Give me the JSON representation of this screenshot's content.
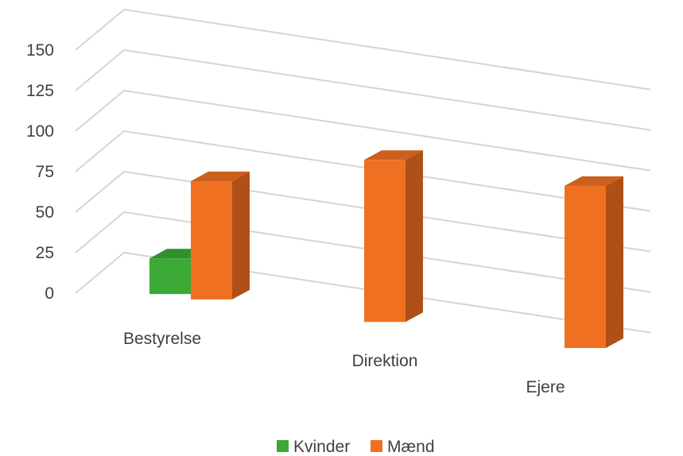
{
  "chart_data": {
    "type": "bar",
    "style": "3d-column",
    "categories": [
      "Bestyrelse",
      "Direktion",
      "Ejere"
    ],
    "series": [
      {
        "name": "Kvinder",
        "color": "#3aa935",
        "values": [
          22,
          0,
          0
        ]
      },
      {
        "name": "Mænd",
        "color": "#f07022",
        "values": [
          73,
          100,
          100
        ]
      }
    ],
    "y_ticks": [
      "0",
      "25",
      "50",
      "75",
      "100",
      "125",
      "150"
    ],
    "ylim": [
      0,
      150
    ],
    "grid": true,
    "legend_position": "bottom",
    "title": "",
    "xlabel": "",
    "ylabel": ""
  }
}
